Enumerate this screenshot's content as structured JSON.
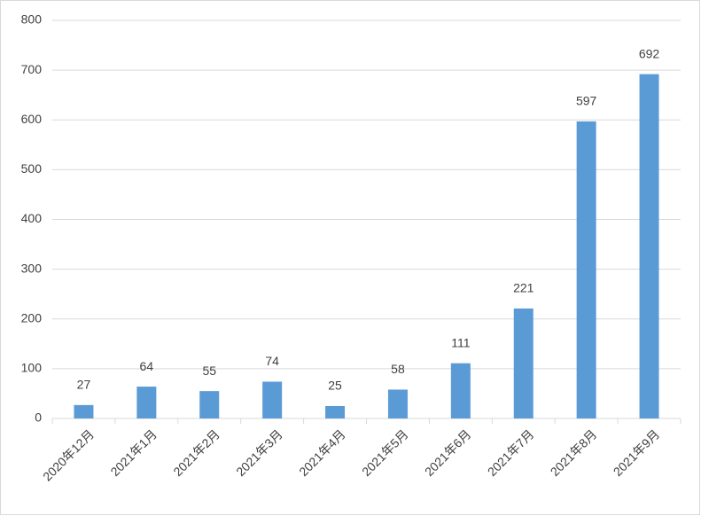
{
  "chart_data": {
    "type": "bar",
    "categories": [
      "2020年12月",
      "2021年1月",
      "2021年2月",
      "2021年3月",
      "2021年4月",
      "2021年5月",
      "2021年6月",
      "2021年7月",
      "2021年8月",
      "2021年9月"
    ],
    "values": [
      27,
      64,
      55,
      74,
      25,
      58,
      111,
      221,
      597,
      692
    ],
    "color": "#5b9bd5",
    "ylim": [
      0,
      800
    ],
    "yticks": [
      0,
      100,
      200,
      300,
      400,
      500,
      600,
      700,
      800
    ],
    "grid": true
  }
}
